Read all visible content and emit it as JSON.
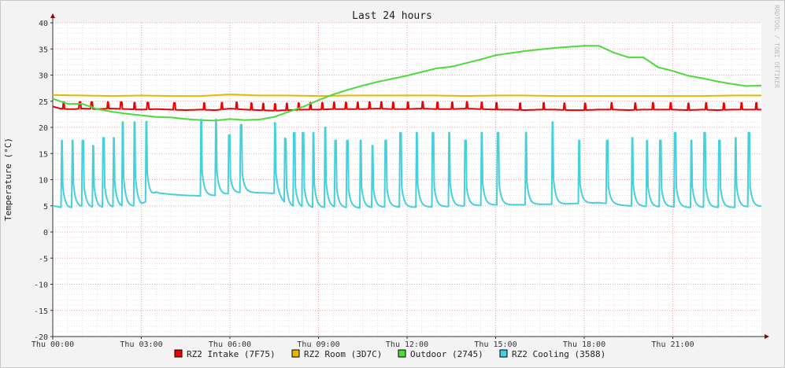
{
  "chart_data": {
    "type": "line",
    "title": "Last 24 hours",
    "ylabel": "Temperature (°C)",
    "xlabel": "",
    "watermark": "RRDTOOL / TOBI OETIKER",
    "ylim": [
      -20,
      40
    ],
    "xlim_hours": [
      0,
      24
    ],
    "grid": true,
    "legend_position": "bottom",
    "y_ticks": [
      -20,
      -15,
      -10,
      -5,
      0,
      5,
      10,
      15,
      20,
      25,
      30,
      35,
      40
    ],
    "x_ticks": [
      {
        "hour": 0,
        "label": "Thu 00:00"
      },
      {
        "hour": 3,
        "label": "Thu 03:00"
      },
      {
        "hour": 6,
        "label": "Thu 06:00"
      },
      {
        "hour": 9,
        "label": "Thu 09:00"
      },
      {
        "hour": 12,
        "label": "Thu 12:00"
      },
      {
        "hour": 15,
        "label": "Thu 15:00"
      },
      {
        "hour": 18,
        "label": "Thu 18:00"
      },
      {
        "hour": 21,
        "label": "Thu 21:00"
      }
    ],
    "series": [
      {
        "name": "RZ2 Intake (7F75)",
        "color": "#ee0000",
        "x": [
          0,
          0.25,
          0.5,
          0.75,
          1,
          1.5,
          2,
          2.5,
          3,
          3.5,
          4,
          4.5,
          5,
          5.5,
          6,
          6.5,
          7,
          7.5,
          8,
          8.5,
          9,
          9.5,
          10,
          10.5,
          11,
          11.5,
          12,
          12.5,
          13,
          13.5,
          14,
          14.5,
          15,
          15.5,
          16,
          16.5,
          17,
          17.5,
          18,
          18.5,
          19,
          19.5,
          20,
          20.5,
          21,
          21.5,
          22,
          22.5,
          23,
          23.5,
          24
        ],
        "values": [
          24,
          23.6,
          23.5,
          23.5,
          23.6,
          23.5,
          23.6,
          23.5,
          23.4,
          23.5,
          23.4,
          23.3,
          23.4,
          23.3,
          23.6,
          23.4,
          23.3,
          23.2,
          23.3,
          23.4,
          23.4,
          23.5,
          23.5,
          23.5,
          23.6,
          23.5,
          23.5,
          23.6,
          23.5,
          23.5,
          23.6,
          23.5,
          23.4,
          23.4,
          23.3,
          23.4,
          23.4,
          23.3,
          23.3,
          23.4,
          23.4,
          23.3,
          23.4,
          23.4,
          23.4,
          23.3,
          23.4,
          23.3,
          23.4,
          23.4,
          23.4
        ],
        "spikes": [
          0.35,
          0.9,
          1.3,
          1.85,
          2.3,
          2.75,
          3.2,
          4.1,
          5.1,
          5.7,
          6.2,
          6.7,
          7.1,
          7.5,
          7.9,
          8.3,
          8.7,
          9.1,
          9.5,
          9.9,
          10.3,
          10.7,
          11.1,
          11.5,
          12.0,
          12.5,
          13.0,
          13.5,
          14.0,
          14.5,
          15.0,
          15.8,
          16.6,
          17.3,
          18.0,
          18.9,
          19.7,
          20.3,
          20.9,
          21.5,
          22.1,
          22.7,
          23.3,
          23.8
        ],
        "spike_height": 1.3
      },
      {
        "name": "RZ2 Room (3D7C)",
        "color": "#e6b800",
        "x": [
          0,
          1,
          2,
          3,
          4,
          5,
          6,
          7,
          8,
          9,
          10,
          11,
          12,
          13,
          14,
          15,
          16,
          17,
          18,
          19,
          20,
          21,
          22,
          23,
          24
        ],
        "values": [
          26.2,
          26.1,
          26.0,
          26.1,
          26.0,
          26.0,
          26.3,
          26.1,
          26.1,
          26.0,
          26.1,
          26.1,
          26.1,
          26.1,
          26.0,
          26.1,
          26.1,
          26.0,
          26.0,
          26.0,
          26.0,
          26.0,
          26.0,
          26.1,
          26.1
        ],
        "spikes": [],
        "spike_height": 0
      },
      {
        "name": "Outdoor (2745)",
        "color": "#4cdb3a",
        "x": [
          0,
          0.5,
          1,
          1.5,
          2,
          2.5,
          3,
          3.5,
          4,
          4.5,
          5,
          5.5,
          6,
          6.5,
          7,
          7.5,
          8,
          8.5,
          9,
          9.5,
          10,
          10.5,
          11,
          11.5,
          12,
          12.5,
          13,
          13.5,
          14,
          14.5,
          15,
          15.5,
          16,
          16.5,
          17,
          17.5,
          18,
          18.5,
          19,
          19.5,
          20,
          20.5,
          21,
          21.5,
          22,
          22.5,
          23,
          23.5,
          24
        ],
        "values": [
          25.5,
          24.5,
          24.5,
          23.5,
          23.0,
          22.6,
          22.3,
          22.0,
          21.9,
          21.6,
          21.4,
          21.3,
          21.6,
          21.4,
          21.5,
          22.0,
          23.0,
          24.0,
          25.2,
          26.3,
          27.2,
          28.0,
          28.7,
          29.3,
          29.9,
          30.6,
          31.3,
          31.6,
          32.3,
          33.0,
          33.8,
          34.2,
          34.6,
          34.9,
          35.2,
          35.4,
          35.6,
          35.6,
          34.3,
          33.4,
          33.4,
          31.5,
          30.8,
          29.9,
          29.4,
          28.8,
          28.3,
          27.9,
          28.0
        ],
        "spikes": [],
        "spike_height": 0
      },
      {
        "name": "RZ2 Cooling (3588)",
        "color": "#45d0dd",
        "x": [
          0,
          0.5,
          1,
          1.5,
          2,
          2.5,
          3,
          3.5,
          4,
          4.5,
          5,
          5.5,
          6,
          6.5,
          7,
          7.5,
          8,
          8.5,
          9,
          9.5,
          10,
          10.5,
          11,
          11.5,
          12,
          12.5,
          13,
          13.5,
          14,
          14.5,
          15,
          15.5,
          16,
          16.5,
          17,
          17.5,
          18,
          18.5,
          19,
          19.5,
          20,
          20.5,
          21,
          21.5,
          22,
          22.5,
          23,
          23.5,
          24
        ],
        "values": [
          5.0,
          4.5,
          4.8,
          4.6,
          4.7,
          4.8,
          5.0,
          7.5,
          7.2,
          7.0,
          6.9,
          7.0,
          7.3,
          7.6,
          7.5,
          7.4,
          4.8,
          4.6,
          4.6,
          4.7,
          4.6,
          4.6,
          4.7,
          4.8,
          4.7,
          4.8,
          4.8,
          4.9,
          5.0,
          5.1,
          5.2,
          5.2,
          5.2,
          5.3,
          5.3,
          5.4,
          5.5,
          5.6,
          5.3,
          5.0,
          4.9,
          4.8,
          4.8,
          4.7,
          4.7,
          4.7,
          4.7,
          4.8,
          4.9
        ],
        "spikes": [
          0.28,
          0.65,
          1.0,
          1.35,
          1.7,
          2.05,
          2.35,
          2.75,
          3.15,
          5.0,
          5.5,
          5.95,
          6.35,
          7.5,
          7.85,
          8.15,
          8.45,
          8.8,
          9.2,
          9.55,
          9.95,
          10.4,
          10.8,
          11.25,
          11.75,
          12.3,
          12.85,
          13.4,
          13.95,
          14.5,
          15.05,
          16.0,
          16.9,
          17.8,
          18.75,
          19.6,
          20.1,
          20.55,
          21.05,
          21.6,
          22.05,
          22.55,
          23.1,
          23.55
        ],
        "spike_heights": [
          17.5,
          17.5,
          17.5,
          16.5,
          18,
          18,
          21,
          21,
          21,
          21.5,
          21.5,
          18.5,
          20.5,
          21,
          18,
          19,
          19,
          19,
          20,
          17.5,
          17.5,
          17.5,
          16.5,
          17.5,
          19,
          19,
          19,
          19,
          17.5,
          19,
          19,
          19,
          21,
          17.5,
          17.5,
          18,
          17.5,
          17.5,
          19,
          17.5,
          19,
          17.5,
          18,
          19
        ]
      }
    ]
  }
}
